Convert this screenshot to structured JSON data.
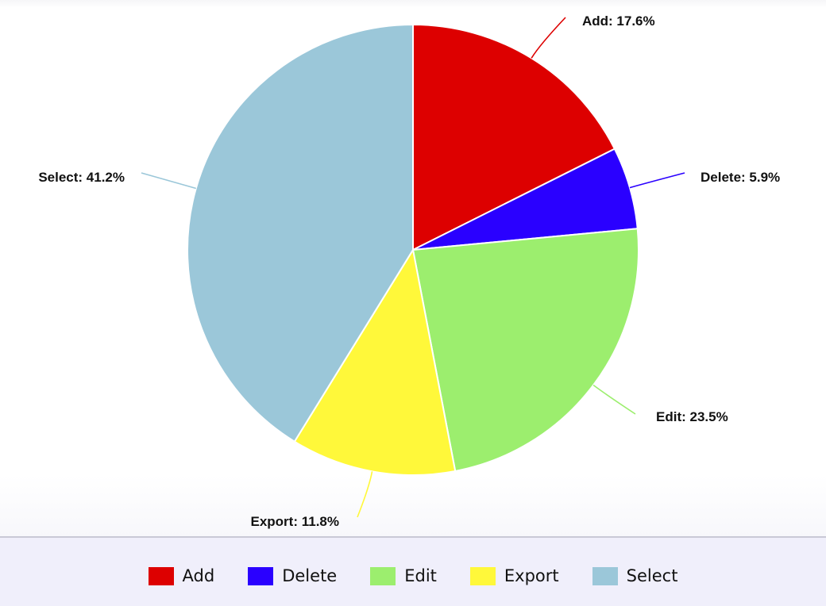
{
  "chart_data": {
    "type": "pie",
    "slices": [
      {
        "name": "Add",
        "value": 17.6,
        "label": "Add: 17.6%",
        "color": "#dd0000"
      },
      {
        "name": "Delete",
        "value": 5.9,
        "label": "Delete: 5.9%",
        "color": "#2a00ff"
      },
      {
        "name": "Edit",
        "value": 23.5,
        "label": "Edit: 23.5%",
        "color": "#9cee6e"
      },
      {
        "name": "Export",
        "value": 11.8,
        "label": "Export: 11.8%",
        "color": "#fff83a"
      },
      {
        "name": "Select",
        "value": 41.2,
        "label": "Select: 41.2%",
        "color": "#9bc7d9"
      }
    ],
    "start_angle": "12 o'clock",
    "direction": "clockwise",
    "legend": {
      "position": "bottom",
      "items": [
        "Add",
        "Delete",
        "Edit",
        "Export",
        "Select"
      ]
    }
  }
}
